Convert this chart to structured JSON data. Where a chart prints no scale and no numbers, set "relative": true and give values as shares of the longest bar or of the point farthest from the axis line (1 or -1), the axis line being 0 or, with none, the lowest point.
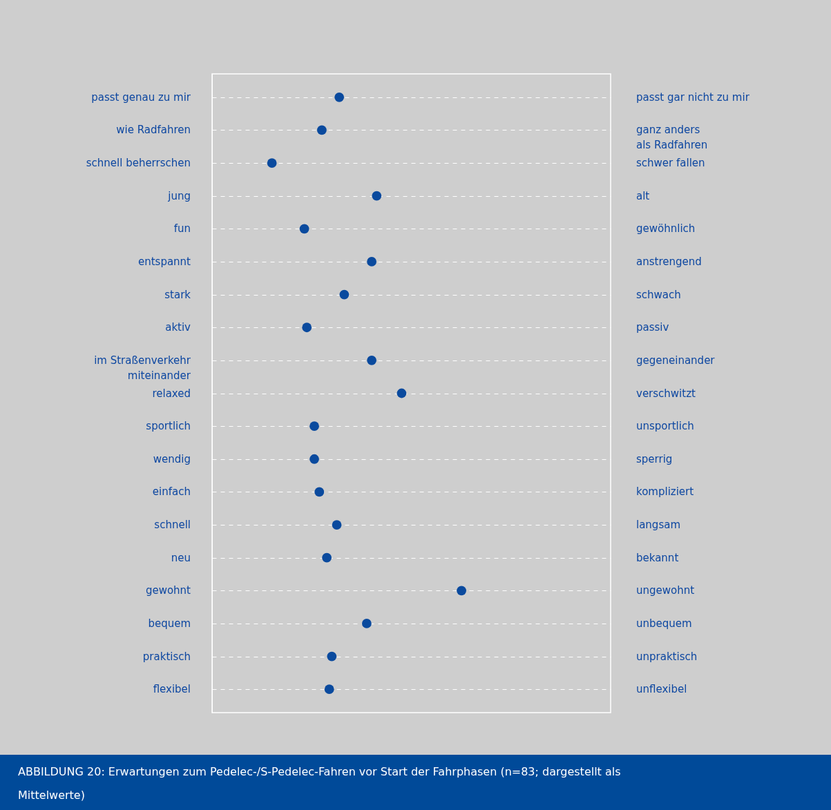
{
  "chart_data": {
    "type": "scatter",
    "orientation": "horizontal",
    "relative": true,
    "categories": [
      "passt genau zu mir",
      "wie Radfahren",
      "schnell beherrschen",
      "jung",
      "fun",
      "entspannt",
      "stark",
      "aktiv",
      "im Straßenverkehr\nmiteinander",
      "relaxed",
      "sportlich",
      "wendig",
      "einfach",
      "schnell",
      "neu",
      "gewohnt",
      "bequem",
      "praktisch",
      "flexibel"
    ],
    "y2_categories": [
      "passt gar nicht zu mir",
      "ganz anders\nals Radfahren",
      "schwer fallen",
      "alt",
      "gewöhnlich",
      "anstrengend",
      "schwach",
      "passiv",
      "gegeneinander",
      "verschwitzt",
      "unsportlich",
      "sperrig",
      "kompliziert",
      "langsam",
      "bekannt",
      "ungewohnt",
      "unbequem",
      "unpraktisch",
      "unflexibel"
    ],
    "series": [
      {
        "color": "#0a4a9e",
        "values": [
          0.51,
          0.44,
          0.24,
          0.66,
          0.37,
          0.64,
          0.53,
          0.38,
          0.64,
          0.76,
          0.41,
          0.41,
          0.43,
          0.5,
          0.46,
          1,
          0.62,
          0.48,
          0.47
        ]
      }
    ],
    "marker": "circle",
    "grid": "y",
    "annotations": [
      "ABBILDUNG 20: Erwartungen zum Pedelec-/S-Pedelec-Fahren vor Start der Fahrphasen (n=83; dargestellt als Mittelwerte)"
    ]
  }
}
